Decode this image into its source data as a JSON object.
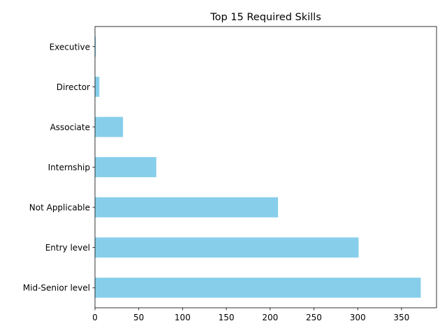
{
  "chart_data": {
    "type": "bar",
    "orientation": "horizontal",
    "title": "Top 15 Required Skills",
    "xlabel": "",
    "ylabel": "",
    "categories": [
      "Mid-Senior level",
      "Entry level",
      "Not Applicable",
      "Internship",
      "Associate",
      "Director",
      "Executive"
    ],
    "values": [
      372,
      301,
      209,
      70,
      32,
      5,
      1
    ],
    "xlim": [
      0,
      390
    ],
    "xticks": [
      0,
      50,
      100,
      150,
      200,
      250,
      300,
      350
    ],
    "grid": false,
    "bar_color": "#87CEEB"
  }
}
